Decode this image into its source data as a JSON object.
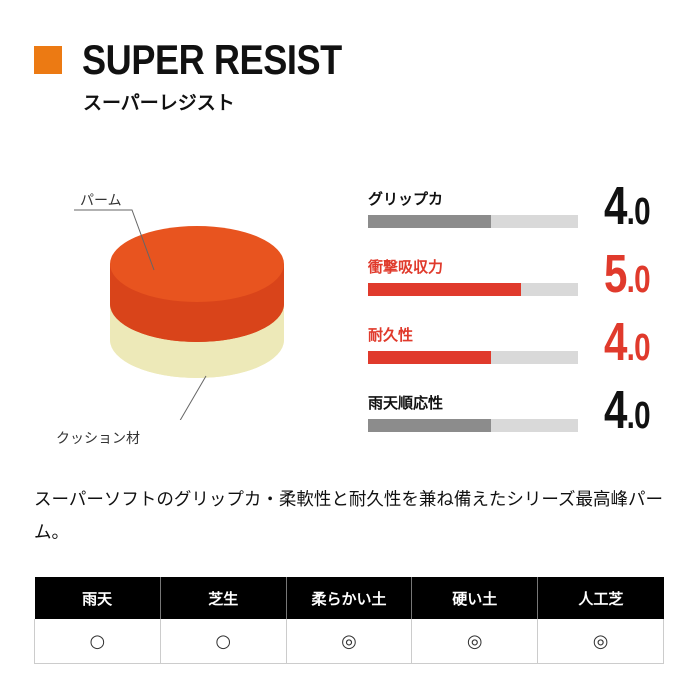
{
  "header": {
    "title": "SUPER RESIST",
    "subtitle": "スーパーレジスト",
    "accent_color": "#ec7a13"
  },
  "diagram": {
    "palm_label": "パーム",
    "cushion_label": "クッション材",
    "palm_color": "#e8541f",
    "cushion_color": "#ede9b8"
  },
  "ratings": [
    {
      "label": "グリップカ",
      "score_int": "4",
      "score_dec": ".0",
      "fraction": 0.585,
      "highlight": false
    },
    {
      "label": "衝撃吸収力",
      "score_int": "5",
      "score_dec": ".0",
      "fraction": 0.73,
      "highlight": true
    },
    {
      "label": "耐久性",
      "score_int": "4",
      "score_dec": ".0",
      "fraction": 0.585,
      "highlight": true
    },
    {
      "label": "雨天順応性",
      "score_int": "4",
      "score_dec": ".0",
      "fraction": 0.585,
      "highlight": false
    }
  ],
  "description": "スーパーソフトのグリップカ・柔軟性と耐久性を兼ね備えたシリーズ最高峰パーム。",
  "conditions": {
    "headers": [
      "雨天",
      "芝生",
      "柔らかい土",
      "硬い土",
      "人工芝"
    ],
    "values": [
      "○",
      "○",
      "◎",
      "◎",
      "◎"
    ]
  },
  "colors": {
    "highlight": "#e03a2c",
    "bar_gray": "#8c8c8c",
    "track": "#d9d9d9"
  }
}
